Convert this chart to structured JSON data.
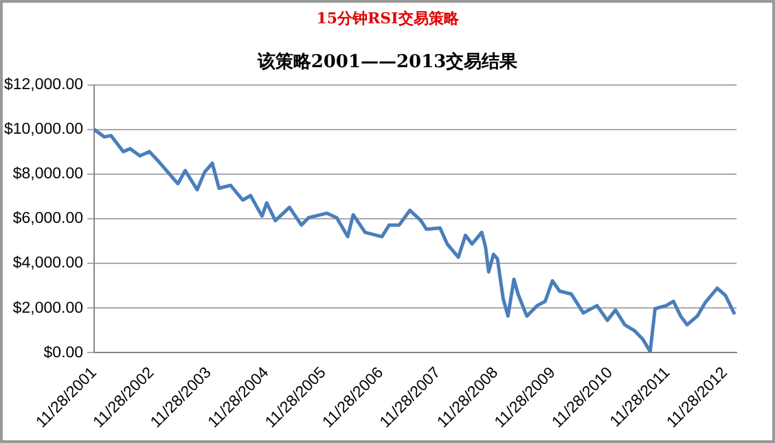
{
  "chart_data": {
    "type": "line",
    "title": "15分钟RSI交易策略",
    "subtitle": "该策略2001——2013交易结果",
    "x": [
      "2001-11-28",
      "2002-02-01",
      "2002-03-15",
      "2002-06-01",
      "2002-07-15",
      "2002-09-15",
      "2002-11-15",
      "2003-01-15",
      "2003-05-15",
      "2003-07-01",
      "2003-09-15",
      "2003-11-01",
      "2003-12-20",
      "2004-02-01",
      "2004-04-15",
      "2004-07-01",
      "2004-08-20",
      "2004-11-01",
      "2004-12-01",
      "2005-01-25",
      "2005-04-25",
      "2005-07-10",
      "2005-08-25",
      "2005-12-20",
      "2006-02-20",
      "2006-05-01",
      "2006-06-05",
      "2006-08-20",
      "2006-12-05",
      "2007-01-20",
      "2007-03-25",
      "2007-06-01",
      "2007-08-10",
      "2007-09-15",
      "2007-12-10",
      "2008-01-25",
      "2008-04-05",
      "2008-05-20",
      "2008-07-01",
      "2008-09-01",
      "2008-09-25",
      "2008-10-15",
      "2008-11-15",
      "2008-12-10",
      "2009-01-15",
      "2009-02-15",
      "2009-03-25",
      "2009-04-20",
      "2009-06-15",
      "2009-08-20",
      "2009-10-10",
      "2009-11-25",
      "2010-01-10",
      "2010-03-25",
      "2010-06-10",
      "2010-09-05",
      "2010-11-10",
      "2011-01-01",
      "2011-03-01",
      "2011-05-01",
      "2011-06-25",
      "2011-08-10",
      "2011-09-10",
      "2011-11-20",
      "2012-01-05",
      "2012-02-20",
      "2012-04-01",
      "2012-06-05",
      "2012-07-25",
      "2012-10-10",
      "2012-12-01",
      "2013-01-25"
    ],
    "series": [
      {
        "color": "#4a7ebb",
        "values": [
          10000,
          9670,
          9730,
          9010,
          9140,
          8820,
          9010,
          8550,
          7570,
          8160,
          7300,
          8090,
          8490,
          7370,
          7500,
          6840,
          7040,
          6120,
          6710,
          5920,
          6510,
          5720,
          6050,
          6250,
          6050,
          5200,
          6180,
          5390,
          5200,
          5720,
          5720,
          6380,
          5920,
          5530,
          5590,
          4870,
          4280,
          5260,
          4870,
          5390,
          4740,
          3620,
          4410,
          4210,
          2430,
          1640,
          3290,
          2630,
          1640,
          2110,
          2300,
          3220,
          2760,
          2630,
          1780,
          2110,
          1450,
          1910,
          1250,
          990,
          590,
          50,
          1970,
          2110,
          2300,
          1640,
          1250,
          1640,
          2240,
          2890,
          2570,
          1780
        ]
      }
    ],
    "xlim": [
      "2001-11-28",
      "2013-02-10"
    ],
    "xticks": [
      {
        "value": "2001-11-28",
        "label": "11/28/2001"
      },
      {
        "value": "2002-11-28",
        "label": "11/28/2002"
      },
      {
        "value": "2003-11-28",
        "label": "11/28/2003"
      },
      {
        "value": "2004-11-28",
        "label": "11/28/2004"
      },
      {
        "value": "2005-11-28",
        "label": "11/28/2005"
      },
      {
        "value": "2006-11-28",
        "label": "11/28/2006"
      },
      {
        "value": "2007-11-28",
        "label": "11/28/2007"
      },
      {
        "value": "2008-11-28",
        "label": "11/28/2008"
      },
      {
        "value": "2009-11-28",
        "label": "11/28/2009"
      },
      {
        "value": "2010-11-28",
        "label": "11/28/2010"
      },
      {
        "value": "2011-11-28",
        "label": "11/28/2011"
      },
      {
        "value": "2012-11-28",
        "label": "11/28/2012"
      }
    ],
    "ylim": [
      0,
      12000
    ],
    "yticks": [
      {
        "value": 0,
        "label": "$0.00"
      },
      {
        "value": 2000,
        "label": "$2,000.00"
      },
      {
        "value": 4000,
        "label": "$4,000.00"
      },
      {
        "value": 6000,
        "label": "$6,000.00"
      },
      {
        "value": 8000,
        "label": "$8,000.00"
      },
      {
        "value": 10000,
        "label": "$10,000.00"
      },
      {
        "value": 12000,
        "label": "$12,000.00"
      }
    ],
    "grid": "y",
    "legend": false,
    "marker": "none",
    "line_style": "solid"
  }
}
